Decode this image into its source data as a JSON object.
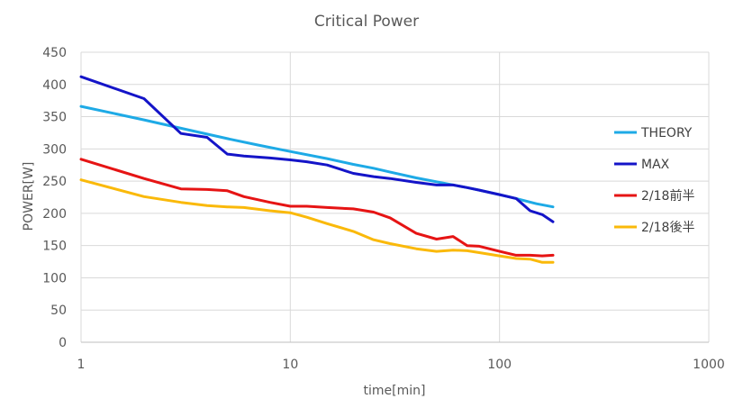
{
  "chart_data": {
    "type": "line",
    "title": "Critical Power",
    "xlabel": "time[min]",
    "ylabel": "POWER[W]",
    "xscale": "log",
    "xlim": [
      1,
      1000
    ],
    "ylim": [
      0,
      450
    ],
    "xticks": [
      1,
      10,
      100,
      1000
    ],
    "xtick_labels": [
      "1",
      "10",
      "100",
      "1000"
    ],
    "yticks": [
      0,
      50,
      100,
      150,
      200,
      250,
      300,
      350,
      400,
      450
    ],
    "ytick_labels": [
      "0",
      "50",
      "100",
      "150",
      "200",
      "250",
      "300",
      "350",
      "400",
      "450"
    ],
    "grid": true,
    "legend_position": "right",
    "series": [
      {
        "name": "THEORY",
        "color": "#1EAAE6",
        "points": [
          [
            1,
            366
          ],
          [
            2,
            345
          ],
          [
            3,
            332
          ],
          [
            4,
            323
          ],
          [
            5,
            316
          ],
          [
            7,
            306
          ],
          [
            10,
            296
          ],
          [
            15,
            285
          ],
          [
            20,
            276
          ],
          [
            25,
            270
          ],
          [
            30,
            264
          ],
          [
            40,
            255
          ],
          [
            50,
            249
          ],
          [
            60,
            244
          ],
          [
            70,
            240
          ],
          [
            80,
            236
          ],
          [
            100,
            229
          ],
          [
            120,
            223
          ],
          [
            150,
            215
          ],
          [
            180,
            210
          ]
        ]
      },
      {
        "name": "MAX",
        "color": "#1414C8",
        "points": [
          [
            1,
            412
          ],
          [
            2,
            378
          ],
          [
            3,
            324
          ],
          [
            4,
            318
          ],
          [
            5,
            292
          ],
          [
            6,
            289
          ],
          [
            8,
            286
          ],
          [
            10,
            283
          ],
          [
            12,
            280
          ],
          [
            15,
            275
          ],
          [
            20,
            262
          ],
          [
            25,
            257
          ],
          [
            30,
            254
          ],
          [
            40,
            248
          ],
          [
            50,
            244
          ],
          [
            60,
            244
          ],
          [
            70,
            240
          ],
          [
            80,
            236
          ],
          [
            100,
            229
          ],
          [
            120,
            223
          ],
          [
            140,
            204
          ],
          [
            160,
            198
          ],
          [
            180,
            187
          ]
        ]
      },
      {
        "name": "2/18前半",
        "color": "#E61414",
        "points": [
          [
            1,
            284
          ],
          [
            2,
            254
          ],
          [
            3,
            238
          ],
          [
            4,
            237
          ],
          [
            5,
            235
          ],
          [
            6,
            226
          ],
          [
            8,
            217
          ],
          [
            10,
            211
          ],
          [
            12,
            211
          ],
          [
            15,
            209
          ],
          [
            20,
            207
          ],
          [
            25,
            202
          ],
          [
            30,
            193
          ],
          [
            40,
            169
          ],
          [
            50,
            160
          ],
          [
            60,
            164
          ],
          [
            70,
            150
          ],
          [
            80,
            149
          ],
          [
            100,
            141
          ],
          [
            120,
            135
          ],
          [
            140,
            135
          ],
          [
            160,
            134
          ],
          [
            180,
            135
          ]
        ]
      },
      {
        "name": "2/18後半",
        "color": "#FAB90A",
        "points": [
          [
            1,
            252
          ],
          [
            2,
            226
          ],
          [
            3,
            217
          ],
          [
            4,
            212
          ],
          [
            5,
            210
          ],
          [
            6,
            209
          ],
          [
            8,
            204
          ],
          [
            10,
            201
          ],
          [
            12,
            194
          ],
          [
            15,
            184
          ],
          [
            20,
            172
          ],
          [
            25,
            159
          ],
          [
            30,
            153
          ],
          [
            40,
            145
          ],
          [
            50,
            141
          ],
          [
            60,
            143
          ],
          [
            70,
            142
          ],
          [
            80,
            139
          ],
          [
            100,
            134
          ],
          [
            120,
            130
          ],
          [
            140,
            129
          ],
          [
            160,
            124
          ],
          [
            180,
            124
          ]
        ]
      }
    ]
  }
}
